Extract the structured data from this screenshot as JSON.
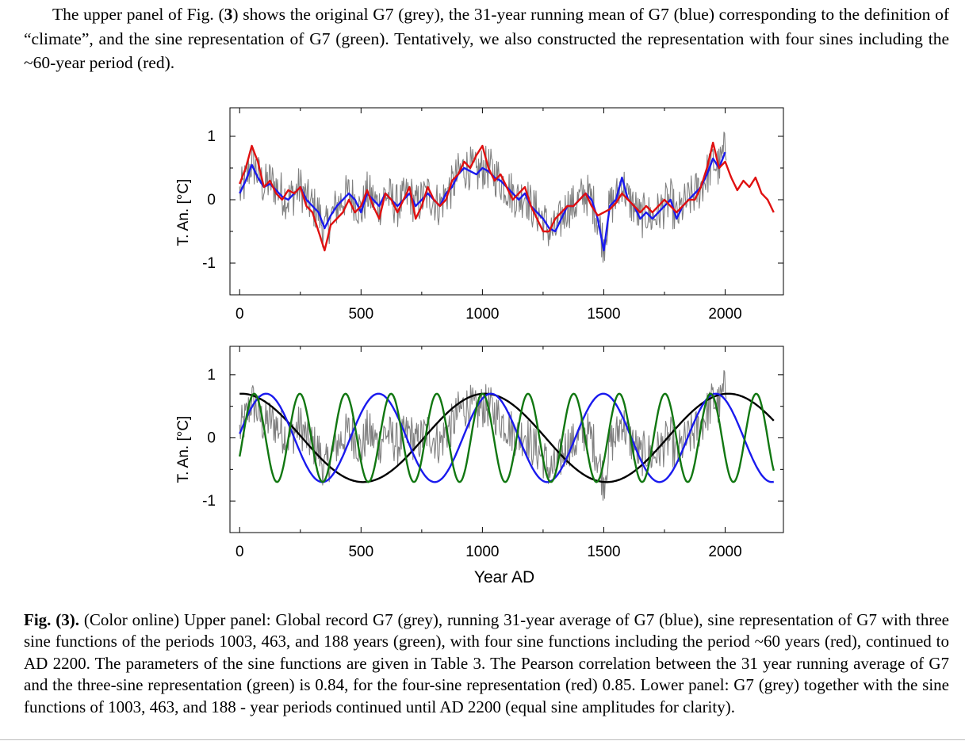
{
  "intro": {
    "t1": "The upper panel of Fig. (",
    "fignum": "3",
    "t2": ") shows the original G7 (grey), the 31-year running mean of G7 (blue) corresponding to the definition of “climate”, and the sine representation of G7 (green). Tentatively, we also constructed the representation with four sines including the ~60-year period (red)."
  },
  "caption": {
    "label": "Fig. (3).",
    "text": " (Color online) Upper panel: Global record G7 (grey), running 31-year average of G7 (blue), sine representation of G7 with three sine functions of the periods 1003, 463, and 188 years (green), with four sine functions including the period ~60 years (red), continued to AD 2200. The parameters of the sine functions are given in Table 3. The Pearson correlation between the 31 year running average of G7 and the three-sine representation (green) is 0.84, for the four-sine representation (red) 0.85. Lower panel: G7 (grey) together with the sine functions of 1003, 463, and 188 - year periods continued until AD 2200 (equal sine amplitudes for clarity)."
  },
  "colors": {
    "grey": "#808080",
    "blue": "#1a1aee",
    "red": "#e01010",
    "green": "#117711",
    "black": "#000000"
  },
  "chart_data": [
    {
      "type": "line",
      "panel": "upper",
      "ylabel": "T. An. [°C]",
      "xlabel": "",
      "xlim": [
        -40,
        2240
      ],
      "ylim": [
        -1.5,
        1.45
      ],
      "xticks": [
        "0",
        "500",
        "1000",
        "1500",
        "2000"
      ],
      "yticks": [
        "1",
        "0",
        "-1"
      ],
      "series": [
        {
          "name": "G7",
          "color": "grey",
          "x": [
            0,
            25,
            50,
            75,
            100,
            125,
            150,
            175,
            200,
            225,
            250,
            275,
            300,
            325,
            350,
            375,
            400,
            425,
            450,
            475,
            500,
            525,
            550,
            575,
            600,
            625,
            650,
            675,
            700,
            725,
            750,
            775,
            800,
            825,
            850,
            875,
            900,
            925,
            950,
            975,
            1000,
            1025,
            1050,
            1075,
            1100,
            1125,
            1150,
            1175,
            1200,
            1225,
            1250,
            1275,
            1300,
            1325,
            1350,
            1375,
            1400,
            1425,
            1450,
            1475,
            1500,
            1525,
            1550,
            1575,
            1600,
            1625,
            1650,
            1675,
            1700,
            1725,
            1750,
            1775,
            1800,
            1825,
            1850,
            1875,
            1900,
            1925,
            1950,
            1975,
            2000
          ],
          "y": [
            0.1,
            0.3,
            0.6,
            0.4,
            0.2,
            0.3,
            0.2,
            0.1,
            0.0,
            0.1,
            0.2,
            0.0,
            -0.1,
            -0.2,
            -0.5,
            -0.3,
            -0.1,
            0.0,
            0.1,
            0.0,
            -0.2,
            0.1,
            0.0,
            -0.1,
            0.1,
            0.0,
            -0.1,
            0.0,
            0.1,
            -0.1,
            0.0,
            0.1,
            0.0,
            -0.1,
            0.1,
            0.2,
            0.4,
            0.5,
            0.5,
            0.4,
            0.5,
            0.5,
            0.4,
            0.3,
            0.2,
            0.1,
            0.0,
            0.1,
            -0.1,
            -0.2,
            -0.3,
            -0.5,
            -0.5,
            -0.3,
            -0.1,
            -0.1,
            0.0,
            0.1,
            0.0,
            -0.3,
            -0.7,
            -0.1,
            0.0,
            0.3,
            0.0,
            -0.1,
            -0.3,
            -0.2,
            -0.3,
            -0.2,
            -0.1,
            0.0,
            -0.3,
            -0.1,
            0.0,
            0.1,
            0.2,
            0.4,
            0.6,
            0.5,
            0.8
          ],
          "noise_amplitude": 0.35
        },
        {
          "name": "31-year running mean of G7",
          "color": "blue",
          "x": [
            0,
            25,
            50,
            75,
            100,
            125,
            150,
            175,
            200,
            225,
            250,
            275,
            300,
            325,
            350,
            375,
            400,
            425,
            450,
            475,
            500,
            525,
            550,
            575,
            600,
            625,
            650,
            675,
            700,
            725,
            750,
            775,
            800,
            825,
            850,
            875,
            900,
            925,
            950,
            975,
            1000,
            1025,
            1050,
            1075,
            1100,
            1125,
            1150,
            1175,
            1200,
            1225,
            1250,
            1275,
            1300,
            1325,
            1350,
            1375,
            1400,
            1425,
            1450,
            1475,
            1500,
            1525,
            1550,
            1575,
            1600,
            1625,
            1650,
            1675,
            1700,
            1725,
            1750,
            1775,
            1800,
            1825,
            1850,
            1875,
            1900,
            1925,
            1950,
            1975,
            2000
          ],
          "y": [
            0.1,
            0.3,
            0.55,
            0.35,
            0.2,
            0.25,
            0.15,
            0.05,
            0.0,
            0.1,
            0.2,
            0.0,
            -0.1,
            -0.2,
            -0.45,
            -0.25,
            -0.1,
            0.0,
            0.1,
            0.0,
            -0.2,
            0.1,
            0.0,
            -0.1,
            0.1,
            0.0,
            -0.1,
            0.0,
            0.1,
            -0.1,
            0.0,
            0.1,
            0.0,
            -0.1,
            0.1,
            0.2,
            0.4,
            0.5,
            0.45,
            0.4,
            0.5,
            0.45,
            0.35,
            0.3,
            0.2,
            0.1,
            0.0,
            0.1,
            -0.1,
            -0.2,
            -0.3,
            -0.45,
            -0.5,
            -0.3,
            -0.1,
            -0.1,
            0.0,
            0.1,
            0.0,
            -0.3,
            -0.8,
            -0.1,
            0.0,
            0.35,
            0.0,
            -0.1,
            -0.3,
            -0.2,
            -0.3,
            -0.2,
            -0.1,
            0.0,
            -0.3,
            -0.1,
            0.0,
            0.1,
            0.2,
            0.4,
            0.65,
            0.5,
            0.75
          ]
        },
        {
          "name": "four-sine representation",
          "color": "red",
          "x": [
            0,
            25,
            50,
            75,
            100,
            125,
            150,
            175,
            200,
            225,
            250,
            275,
            300,
            325,
            350,
            375,
            400,
            425,
            450,
            475,
            500,
            525,
            550,
            575,
            600,
            625,
            650,
            675,
            700,
            725,
            750,
            775,
            800,
            825,
            850,
            875,
            900,
            925,
            950,
            975,
            1000,
            1025,
            1050,
            1075,
            1100,
            1125,
            1150,
            1175,
            1200,
            1225,
            1250,
            1275,
            1300,
            1325,
            1350,
            1375,
            1400,
            1425,
            1450,
            1475,
            1500,
            1525,
            1550,
            1575,
            1600,
            1625,
            1650,
            1675,
            1700,
            1725,
            1750,
            1775,
            1800,
            1825,
            1850,
            1875,
            1900,
            1925,
            1950,
            1975,
            2000,
            2025,
            2050,
            2075,
            2100,
            2125,
            2150,
            2175,
            2200
          ],
          "y": [
            0.25,
            0.5,
            0.85,
            0.6,
            0.2,
            0.3,
            0.1,
            0.0,
            0.15,
            0.1,
            0.2,
            -0.1,
            -0.2,
            -0.5,
            -0.8,
            -0.4,
            -0.3,
            -0.2,
            0.0,
            -0.2,
            -0.1,
            0.15,
            -0.1,
            -0.3,
            0.1,
            0.0,
            -0.2,
            0.0,
            0.2,
            -0.3,
            -0.1,
            0.2,
            0.0,
            -0.1,
            0.0,
            0.3,
            0.4,
            0.6,
            0.5,
            0.7,
            0.85,
            0.5,
            0.3,
            0.4,
            0.2,
            0.0,
            0.1,
            0.2,
            -0.1,
            -0.3,
            -0.5,
            -0.5,
            -0.3,
            -0.2,
            -0.1,
            -0.1,
            0.0,
            0.1,
            -0.1,
            -0.25,
            -0.2,
            -0.15,
            -0.05,
            0.1,
            0.0,
            -0.1,
            -0.2,
            -0.1,
            -0.2,
            -0.1,
            0.0,
            -0.1,
            -0.2,
            -0.1,
            0.0,
            0.0,
            0.2,
            0.5,
            0.9,
            0.5,
            0.6,
            0.35,
            0.15,
            0.3,
            0.2,
            0.35,
            0.1,
            0.0,
            -0.2
          ]
        }
      ]
    },
    {
      "type": "line",
      "panel": "lower",
      "ylabel": "T. An. [°C]",
      "xlabel": "Year AD",
      "xlim": [
        -40,
        2240
      ],
      "ylim": [
        -1.5,
        1.45
      ],
      "xticks": [
        "0",
        "500",
        "1000",
        "1500",
        "2000"
      ],
      "yticks": [
        "1",
        "0",
        "-1"
      ],
      "series": [
        {
          "name": "G7",
          "color": "grey",
          "same_as_upper": true,
          "noise_amplitude": 0.35
        },
        {
          "name": "sine 1003-year period",
          "color": "black",
          "period": 1003,
          "amplitude": 0.7,
          "peak_year": 1010,
          "x_range": [
            0,
            2200
          ]
        },
        {
          "name": "sine 463-year period",
          "color": "blue",
          "period": 463,
          "amplitude": 0.7,
          "peak_year": 1035,
          "x_range": [
            0,
            2200
          ]
        },
        {
          "name": "sine 188-year period",
          "color": "green",
          "period": 188,
          "amplitude": 0.7,
          "peak_year": 1000,
          "x_range": [
            0,
            2200
          ]
        }
      ]
    }
  ]
}
